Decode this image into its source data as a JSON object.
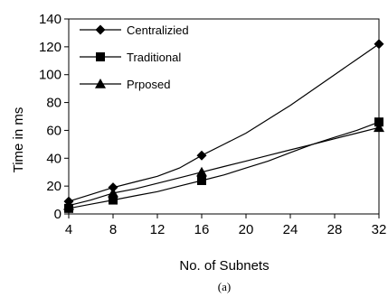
{
  "chart_data": {
    "type": "line",
    "xlabel": "No. of Subnets",
    "ylabel": "Time in ms",
    "caption": "(a)",
    "x_ticks": [
      4,
      8,
      12,
      16,
      20,
      24,
      28,
      32
    ],
    "y_ticks": [
      0,
      20,
      40,
      60,
      80,
      100,
      120,
      140
    ],
    "xlim": [
      4,
      32
    ],
    "ylim": [
      0,
      140
    ],
    "grid": false,
    "legend_position": "top-left",
    "series": [
      {
        "name": "Centralizied",
        "marker": "diamond",
        "x": [
          4,
          6,
          8,
          10,
          12,
          14,
          16,
          18,
          20,
          22,
          24,
          26,
          28,
          30,
          32
        ],
        "y": [
          9,
          14,
          19,
          23,
          27,
          33,
          42,
          50,
          58,
          68,
          78,
          89,
          100,
          111,
          122
        ],
        "marker_x": [
          4,
          8,
          16,
          32
        ],
        "marker_y": [
          9,
          19,
          42,
          122
        ]
      },
      {
        "name": "Traditional",
        "marker": "square",
        "x": [
          4,
          6,
          8,
          10,
          12,
          14,
          16,
          18,
          20,
          22,
          24,
          26,
          28,
          30,
          32
        ],
        "y": [
          4,
          7,
          10,
          13,
          16,
          20,
          24,
          28,
          33,
          38,
          44,
          50,
          55,
          60,
          66
        ],
        "marker_x": [
          4,
          8,
          16,
          32
        ],
        "marker_y": [
          4,
          10,
          24,
          66
        ]
      },
      {
        "name": "Prposed",
        "marker": "triangle",
        "x": [
          4,
          6,
          8,
          10,
          12,
          14,
          16,
          18,
          20,
          22,
          24,
          26,
          28,
          30,
          32
        ],
        "y": [
          6,
          10,
          15,
          18,
          22,
          26,
          30,
          34,
          38,
          42,
          46,
          50,
          54,
          58,
          62
        ],
        "marker_x": [
          4,
          8,
          16,
          32
        ],
        "marker_y": [
          6,
          15,
          30,
          62
        ]
      }
    ]
  }
}
